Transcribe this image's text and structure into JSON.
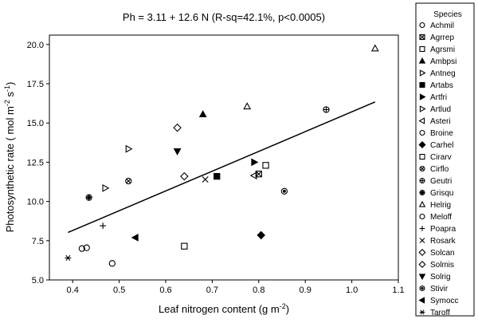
{
  "chart_data": {
    "type": "scatter",
    "title": "Ph = 3.11 + 12.6 N (R-sq=42.1%, p<0.0005)",
    "xlabel": "Leaf nitrogen content (g m",
    "xlabel_sup": "-2",
    "xlabel_close": ")",
    "ylabel": "Photosynthetic rate (  mol m",
    "ylabel_sup1": "-2",
    "ylabel_mid": " s",
    "ylabel_sup2": "-1",
    "ylabel_close": ")",
    "xlim": [
      0.35,
      1.1
    ],
    "ylim": [
      5.0,
      20.6
    ],
    "x_ticks": [
      0.4,
      0.5,
      0.6,
      0.7,
      0.8,
      0.9,
      1.0,
      1.1
    ],
    "x_tick_labels": [
      "0.4",
      "0.5",
      "0.6",
      "0.7",
      "0.8",
      "0.9",
      "1.0",
      "1.1"
    ],
    "y_ticks": [
      5.0,
      7.5,
      10.0,
      12.5,
      15.0,
      17.5,
      20.0
    ],
    "y_tick_labels": [
      "5.0",
      "7.5",
      "10.0",
      "12.5",
      "15.0",
      "17.5",
      "20.0"
    ],
    "grid": false,
    "regression_line": {
      "intercept": 3.11,
      "slope": 12.6,
      "x_range": [
        0.39,
        1.05
      ]
    },
    "legend": {
      "title": "Species",
      "placement": "right"
    },
    "series": [
      {
        "name": "Achmil",
        "marker": "circle-open",
        "x": [
          0.42
        ],
        "y": [
          7.0
        ]
      },
      {
        "name": "Agrrep",
        "marker": "square-x",
        "x": [
          0.8
        ],
        "y": [
          11.75
        ]
      },
      {
        "name": "Agrsmi",
        "marker": "square-open",
        "x": [
          0.64
        ],
        "y": [
          7.15
        ]
      },
      {
        "name": "Ambpsi",
        "marker": "triangle-up-filled",
        "x": [
          0.68
        ],
        "y": [
          15.55
        ]
      },
      {
        "name": "Antneg",
        "marker": "triangle-right-open",
        "x": [
          0.52
        ],
        "y": [
          13.35
        ]
      },
      {
        "name": "Artabs",
        "marker": "square-filled",
        "x": [
          0.71
        ],
        "y": [
          11.6
        ]
      },
      {
        "name": "Artfri",
        "marker": "triangle-right-filled",
        "x": [
          0.79
        ],
        "y": [
          12.5
        ]
      },
      {
        "name": "Artlud",
        "marker": "triangle-right-open",
        "x": [
          0.47
        ],
        "y": [
          10.85
        ]
      },
      {
        "name": "Asteri",
        "marker": "triangle-left-open",
        "x": [
          0.79
        ],
        "y": [
          11.65
        ]
      },
      {
        "name": "Broine",
        "marker": "circle-open",
        "x": [
          0.485
        ],
        "y": [
          6.05
        ]
      },
      {
        "name": "Carhel",
        "marker": "diamond-filled",
        "x": [
          0.805
        ],
        "y": [
          7.85
        ]
      },
      {
        "name": "Cirarv",
        "marker": "square-open",
        "x": [
          0.815
        ],
        "y": [
          12.3
        ]
      },
      {
        "name": "Cirflo",
        "marker": "circle-x",
        "x": [
          0.52
        ],
        "y": [
          11.3
        ]
      },
      {
        "name": "Geutri",
        "marker": "circle-plus",
        "x": [
          0.945
        ],
        "y": [
          15.85
        ]
      },
      {
        "name": "Grisqu",
        "marker": "circle-plus-filled",
        "x": [
          0.435
        ],
        "y": [
          10.25
        ]
      },
      {
        "name": "Helrig",
        "marker": "triangle-up-open",
        "x": [
          1.05,
          0.775
        ],
        "y": [
          19.75,
          16.05
        ]
      },
      {
        "name": "Meloff",
        "marker": "circle-open",
        "x": [
          0.43
        ],
        "y": [
          7.05
        ]
      },
      {
        "name": "Poapra",
        "marker": "plus",
        "x": [
          0.465
        ],
        "y": [
          8.45
        ]
      },
      {
        "name": "Rosark",
        "marker": "x",
        "x": [
          0.685
        ],
        "y": [
          11.4
        ]
      },
      {
        "name": "Solcan",
        "marker": "diamond-open",
        "x": [
          0.64
        ],
        "y": [
          11.6
        ]
      },
      {
        "name": "Solmis",
        "marker": "diamond-open",
        "x": [
          0.625
        ],
        "y": [
          14.7
        ]
      },
      {
        "name": "Solrig",
        "marker": "triangle-down-filled",
        "x": [
          0.625
        ],
        "y": [
          13.2
        ]
      },
      {
        "name": "Stivir",
        "marker": "circle-dot",
        "x": [
          0.855
        ],
        "y": [
          10.65
        ]
      },
      {
        "name": "Symocc",
        "marker": "triangle-left-filled",
        "x": [
          0.535
        ],
        "y": [
          7.7
        ]
      },
      {
        "name": "Taroff",
        "marker": "asterisk",
        "x": [
          0.39
        ],
        "y": [
          6.4
        ]
      }
    ]
  }
}
